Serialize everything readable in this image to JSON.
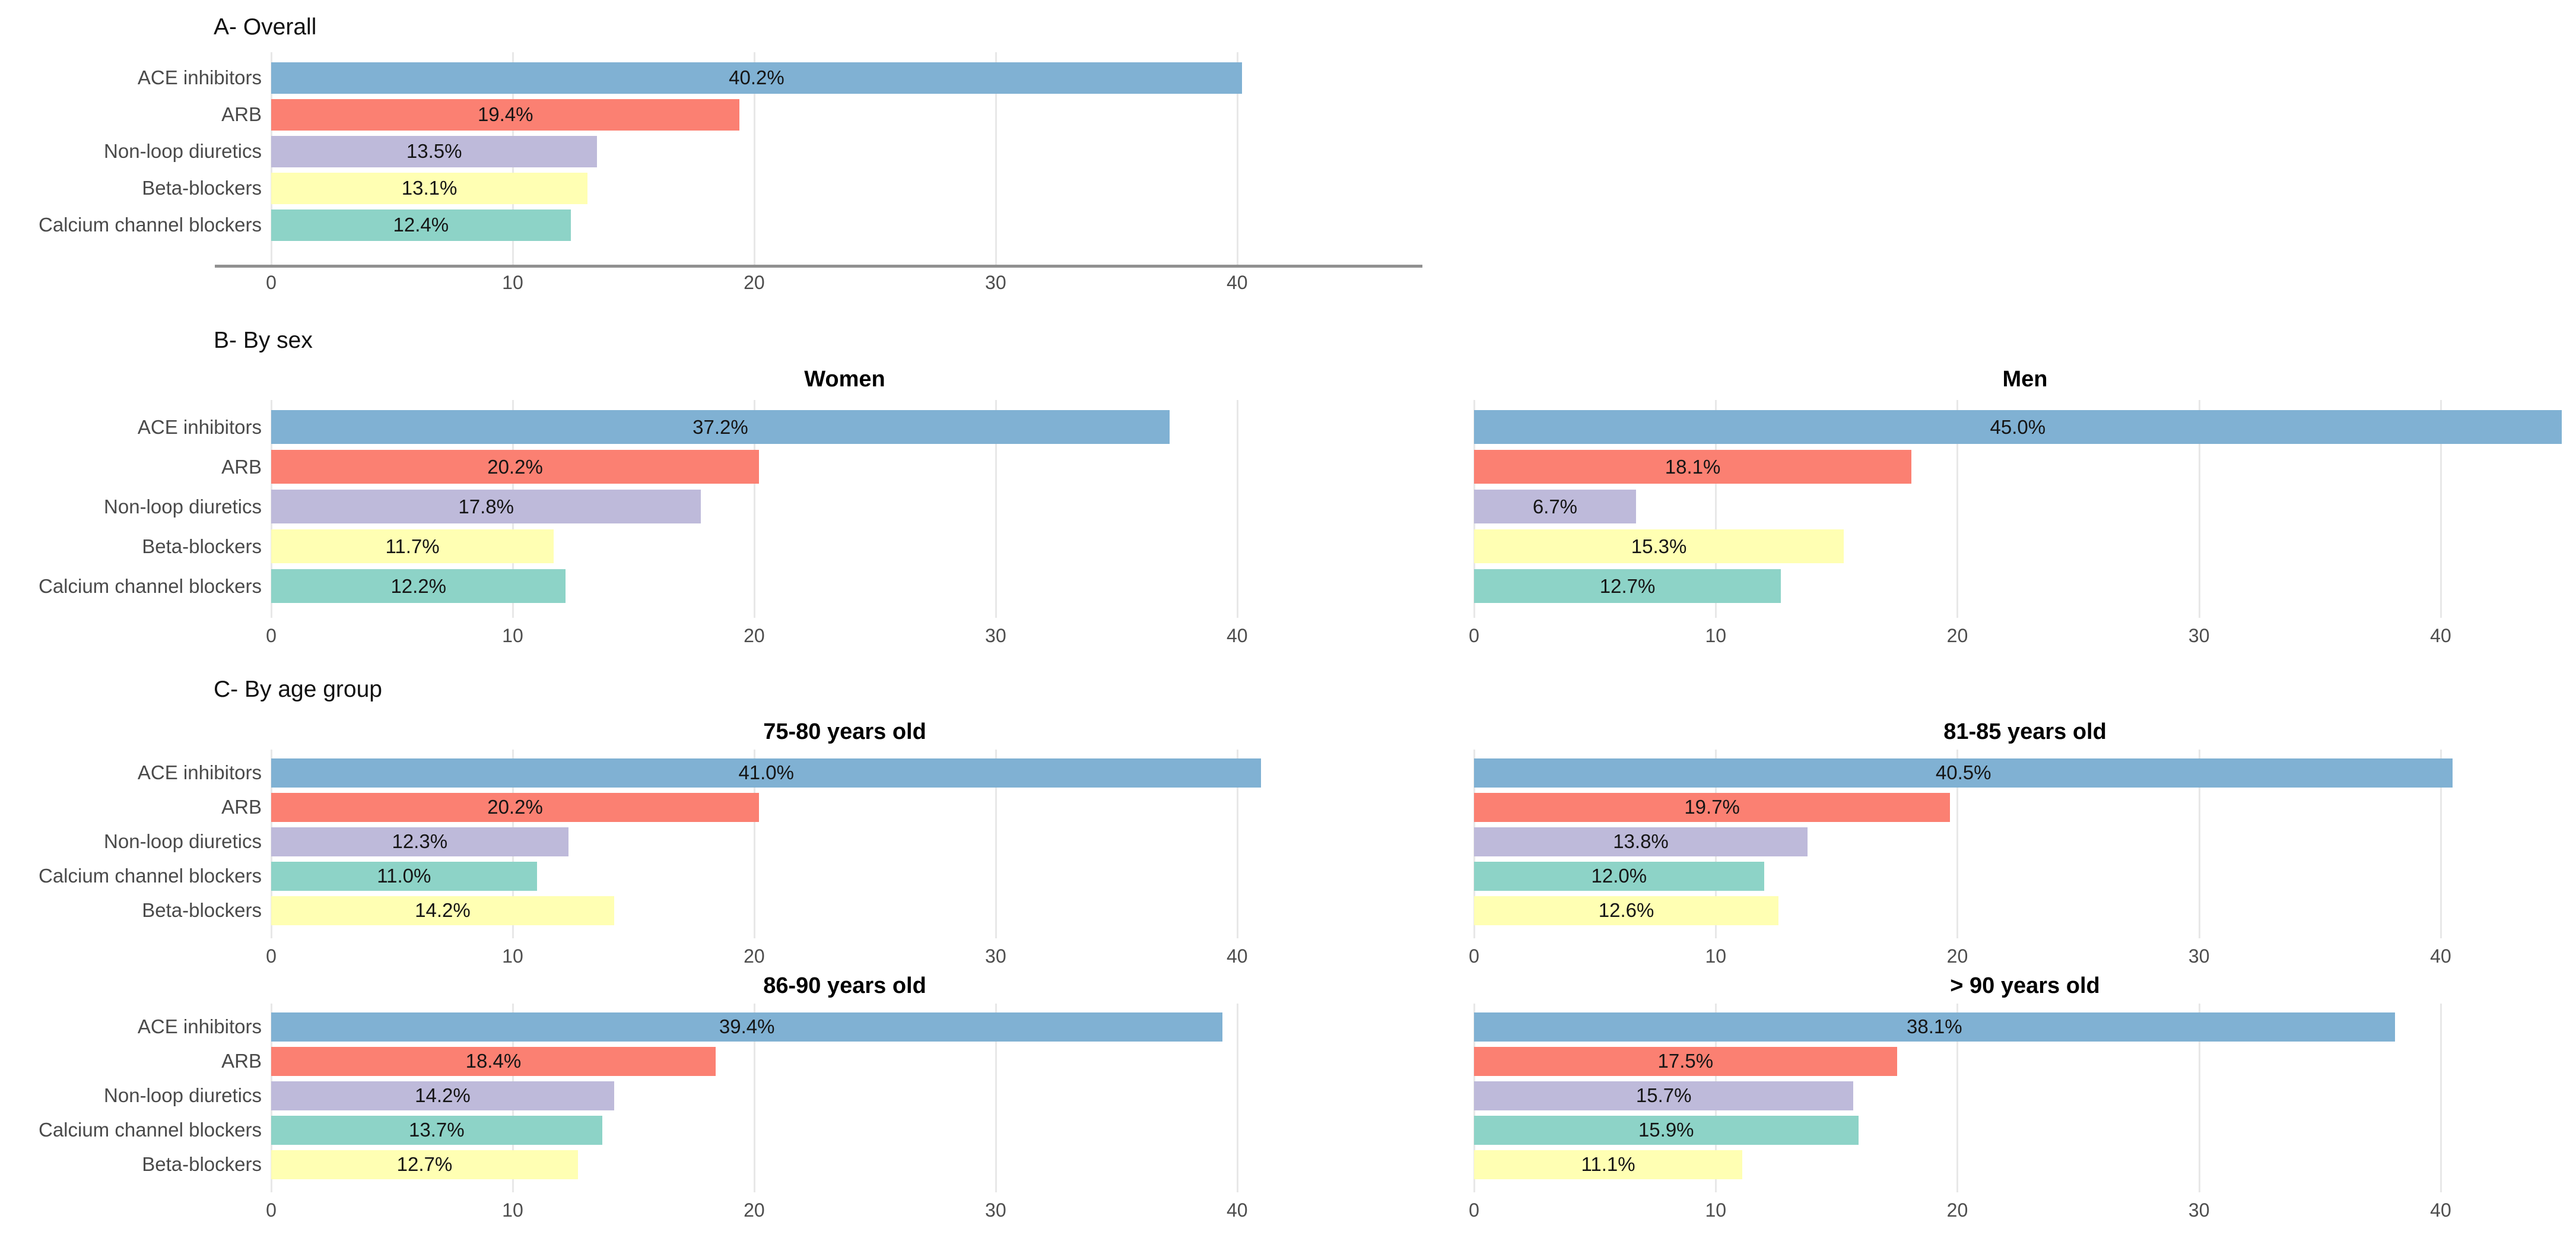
{
  "sections": {
    "a": {
      "title": "A- Overall"
    },
    "b": {
      "title": "B- By sex"
    },
    "c": {
      "title": "C- By age group"
    }
  },
  "palette": {
    "ACE inhibitors": "#80B1D3",
    "ARB": "#FB8072",
    "Non-loop diuretics": "#BEBADA",
    "Beta-blockers": "#FFFFB3",
    "Calcium channel blockers": "#8DD3C7"
  },
  "axis": {
    "ticks": [
      0,
      10,
      20,
      30,
      40
    ],
    "tick_color": "#4d4d4d",
    "grid_color": "#e8e8e8",
    "grid": true,
    "legend": "none"
  },
  "chart_data": [
    {
      "id": "overall",
      "type": "bar",
      "orientation": "horizontal",
      "title": "",
      "categories": [
        "ACE inhibitors",
        "ARB",
        "Non-loop diuretics",
        "Beta-blockers",
        "Calcium channel blockers"
      ],
      "values": [
        40.2,
        19.4,
        13.5,
        13.1,
        12.4
      ],
      "labels": [
        "40.2%",
        "19.4%",
        "13.5%",
        "13.1%",
        "12.4%"
      ],
      "xlim": [
        0,
        47.5
      ],
      "show_category_labels": true,
      "has_axis_line": true
    },
    {
      "id": "women",
      "type": "bar",
      "orientation": "horizontal",
      "title": "Women",
      "categories": [
        "ACE inhibitors",
        "ARB",
        "Non-loop diuretics",
        "Beta-blockers",
        "Calcium channel blockers"
      ],
      "values": [
        37.2,
        20.2,
        17.8,
        11.7,
        12.2
      ],
      "labels": [
        "37.2%",
        "20.2%",
        "17.8%",
        "11.7%",
        "12.2%"
      ],
      "xlim": [
        0,
        47.5
      ],
      "show_category_labels": true,
      "has_axis_line": false
    },
    {
      "id": "men",
      "type": "bar",
      "orientation": "horizontal",
      "title": "Men",
      "categories": [
        "ACE inhibitors",
        "ARB",
        "Non-loop diuretics",
        "Beta-blockers",
        "Calcium channel blockers"
      ],
      "values": [
        45.0,
        18.1,
        6.7,
        15.3,
        12.7
      ],
      "labels": [
        "45.0%",
        "18.1%",
        "6.7%",
        "15.3%",
        "12.7%"
      ],
      "xlim": [
        0,
        45.6
      ],
      "show_category_labels": false,
      "has_axis_line": false
    },
    {
      "id": "age75",
      "type": "bar",
      "orientation": "horizontal",
      "title": "75-80 years old",
      "categories": [
        "ACE inhibitors",
        "ARB",
        "Non-loop diuretics",
        "Calcium channel blockers",
        "Beta-blockers"
      ],
      "values": [
        41.0,
        20.2,
        12.3,
        11.0,
        14.2
      ],
      "labels": [
        "41.0%",
        "20.2%",
        "12.3%",
        "11.0%",
        "14.2%"
      ],
      "xlim": [
        0,
        47.5
      ],
      "show_category_labels": true,
      "has_axis_line": false
    },
    {
      "id": "age81",
      "type": "bar",
      "orientation": "horizontal",
      "title": "81-85 years old",
      "categories": [
        "ACE inhibitors",
        "ARB",
        "Non-loop diuretics",
        "Calcium channel blockers",
        "Beta-blockers"
      ],
      "values": [
        40.5,
        19.7,
        13.8,
        12.0,
        12.6
      ],
      "labels": [
        "40.5%",
        "19.7%",
        "13.8%",
        "12.0%",
        "12.6%"
      ],
      "xlim": [
        0,
        45.6
      ],
      "show_category_labels": false,
      "has_axis_line": false
    },
    {
      "id": "age86",
      "type": "bar",
      "orientation": "horizontal",
      "title": "86-90 years old",
      "categories": [
        "ACE inhibitors",
        "ARB",
        "Non-loop diuretics",
        "Calcium channel blockers",
        "Beta-blockers"
      ],
      "values": [
        39.4,
        18.4,
        14.2,
        13.7,
        12.7
      ],
      "labels": [
        "39.4%",
        "18.4%",
        "14.2%",
        "13.7%",
        "12.7%"
      ],
      "xlim": [
        0,
        47.5
      ],
      "show_category_labels": true,
      "has_axis_line": false
    },
    {
      "id": "age90",
      "type": "bar",
      "orientation": "horizontal",
      "title": "> 90 years old",
      "categories": [
        "ACE inhibitors",
        "ARB",
        "Non-loop diuretics",
        "Calcium channel blockers",
        "Beta-blockers"
      ],
      "values": [
        38.1,
        17.5,
        15.7,
        15.9,
        11.1
      ],
      "labels": [
        "38.1%",
        "17.5%",
        "15.7%",
        "15.9%",
        "11.1%"
      ],
      "xlim": [
        0,
        45.6
      ],
      "show_category_labels": false,
      "has_axis_line": false
    }
  ]
}
